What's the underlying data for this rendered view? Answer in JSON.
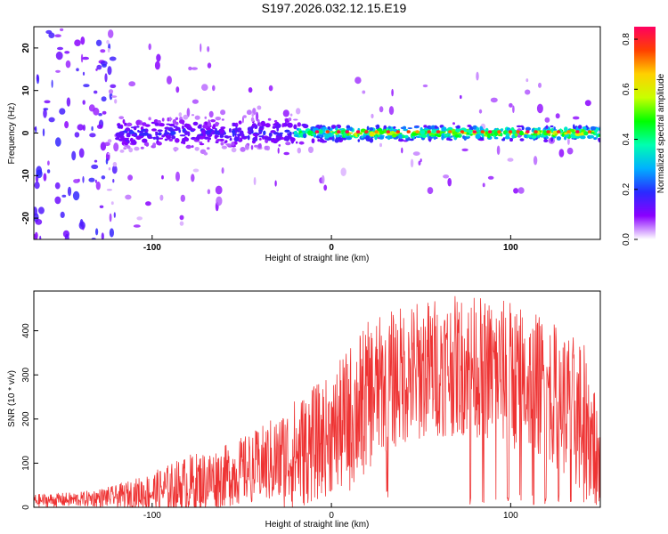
{
  "title": "S197.2026.032.12.15.E19",
  "chart_data": [
    {
      "type": "heatmap",
      "panel": "spectrogram",
      "xlabel": "Height of straight line (km)",
      "ylabel": "Frequency (Hz)",
      "xlim": [
        -166,
        150
      ],
      "ylim": [
        -25,
        25
      ],
      "xticks": [
        -100,
        0,
        100
      ],
      "xtick_labels": [
        "-100",
        "0",
        "100"
      ],
      "yticks": [
        -20,
        -10,
        0,
        10,
        20
      ],
      "ytick_labels": [
        "-20",
        "-10",
        "0",
        "10",
        "20"
      ],
      "colorbar": {
        "label": "Normalized spectral amplitude",
        "range": [
          0.0,
          0.85
        ],
        "ticks": [
          0.0,
          0.2,
          0.4,
          0.6,
          0.8
        ],
        "tick_labels": [
          "0.0",
          "0.2",
          "0.4",
          "0.6",
          "0.8"
        ],
        "colors": [
          "#ffffff",
          "#8a00ff",
          "#2a2aff",
          "#00b0ff",
          "#00ffb0",
          "#00ff00",
          "#c8ff00",
          "#ffd000",
          "#ff4000",
          "#ff0060"
        ]
      },
      "band_center_hz": 0,
      "band_segments": [
        {
          "x_from": -166,
          "x_to": -120,
          "halfwidth_hz": 25,
          "amplitude": 0.1
        },
        {
          "x_from": -120,
          "x_to": -20,
          "halfwidth_hz": 4,
          "amplitude": 0.3
        },
        {
          "x_from": -20,
          "x_to": 0,
          "halfwidth_hz": 2,
          "amplitude": 0.6
        },
        {
          "x_from": 0,
          "x_to": 150,
          "halfwidth_hz": 1.5,
          "amplitude": 0.85
        }
      ]
    },
    {
      "type": "line",
      "panel": "snr",
      "xlabel": "Height of straight line (km)",
      "ylabel": "SNR (10 * v/v)",
      "xlim": [
        -166,
        150
      ],
      "ylim": [
        0,
        490
      ],
      "xticks": [
        -100,
        0,
        100
      ],
      "xtick_labels": [
        "-100",
        "0",
        "100"
      ],
      "yticks": [
        0,
        100,
        200,
        300,
        400
      ],
      "ytick_labels": [
        "0",
        "100",
        "200",
        "300",
        "400"
      ],
      "series": [
        {
          "name": "SNR",
          "color": "#ee3333",
          "envelope_x": [
            -166,
            -140,
            -120,
            -100,
            -80,
            -60,
            -40,
            -20,
            0,
            10,
            20,
            30,
            40,
            60,
            80,
            100,
            120,
            140,
            150
          ],
          "envelope_max": [
            30,
            35,
            50,
            80,
            120,
            140,
            180,
            250,
            300,
            370,
            420,
            440,
            460,
            480,
            480,
            470,
            430,
            380,
            250
          ],
          "envelope_mean": [
            15,
            18,
            25,
            35,
            50,
            70,
            95,
            120,
            165,
            200,
            250,
            280,
            300,
            320,
            320,
            300,
            270,
            200,
            120
          ]
        }
      ]
    }
  ]
}
